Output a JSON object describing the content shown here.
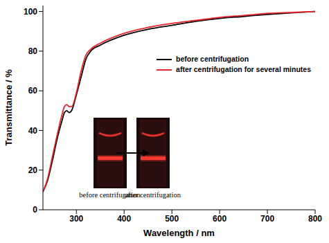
{
  "chart_data": {
    "type": "line",
    "xlabel": "Wavelength / nm",
    "ylabel": "Transmittance / %",
    "x": [
      230,
      240,
      250,
      260,
      270,
      275,
      280,
      285,
      290,
      300,
      310,
      320,
      330,
      350,
      400,
      450,
      500,
      550,
      600,
      650,
      700,
      750,
      800
    ],
    "series": [
      {
        "name": "before centrifugation",
        "color": "#000000",
        "values": [
          9,
          15,
          25,
          36,
          45,
          49,
          50,
          49,
          50,
          58,
          67,
          76,
          80,
          83,
          88,
          91,
          93,
          95,
          96.5,
          97.5,
          98.5,
          99.3,
          100
        ]
      },
      {
        "name": "after centrifugation for several minutes",
        "color": "#e8242b",
        "values": [
          9,
          16,
          27,
          38,
          48,
          52,
          53,
          52,
          52,
          59,
          70,
          78,
          81,
          84,
          89,
          92,
          94,
          95.5,
          97,
          98,
          99,
          99.5,
          100
        ]
      }
    ],
    "xlim": [
      230,
      800
    ],
    "ylim": [
      0,
      103
    ],
    "xticks": [
      300,
      400,
      500,
      600,
      700,
      800
    ],
    "yticks": [
      0,
      20,
      40,
      60,
      80,
      100
    ],
    "legend": "upper right",
    "annotations": [
      "before centrifugation",
      "after centrifugation"
    ]
  }
}
